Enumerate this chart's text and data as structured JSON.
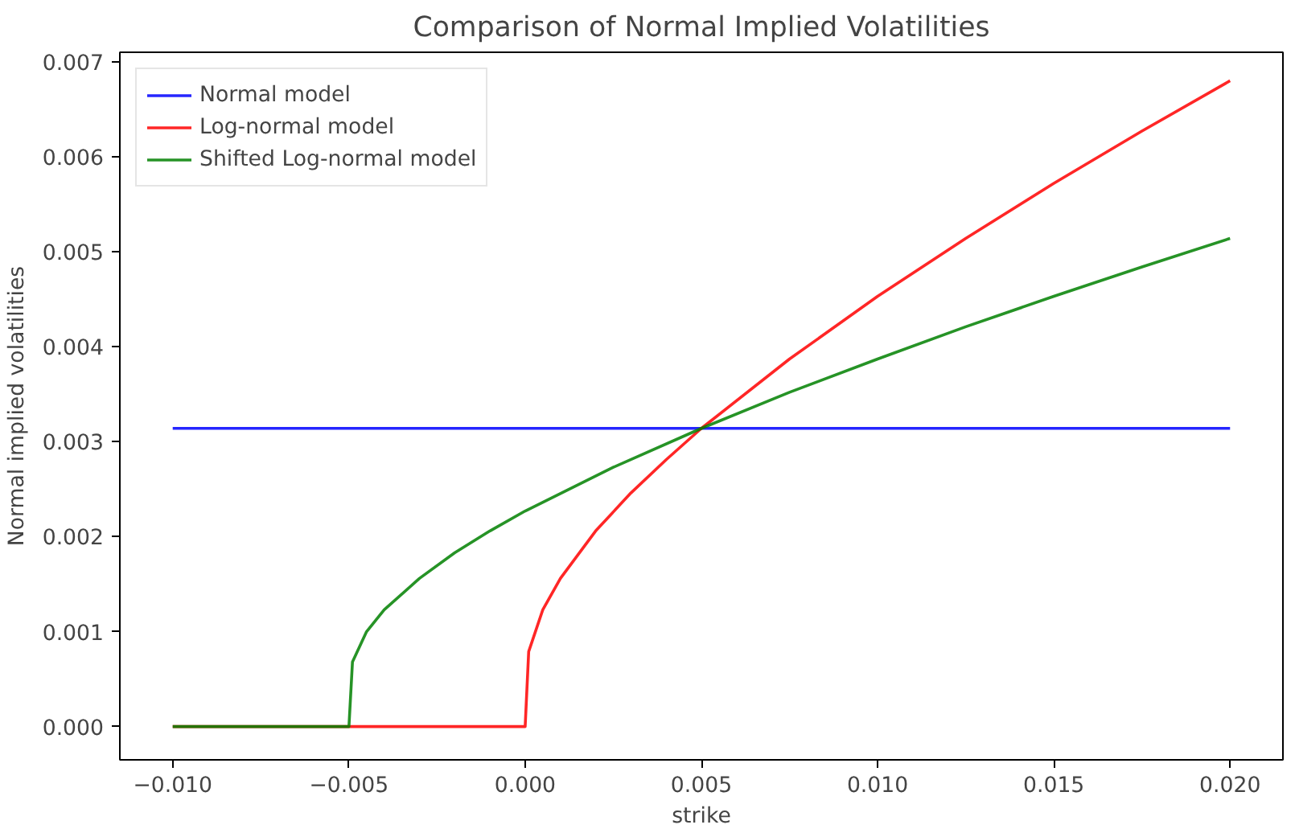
{
  "chart_data": {
    "type": "line",
    "title": "Comparison of Normal Implied Volatilities",
    "xlabel": "strike",
    "ylabel": "Normal implied volatilities",
    "xlim": [
      -0.0115,
      0.0215
    ],
    "ylim": [
      -0.00035,
      0.0071
    ],
    "xticks": [
      {
        "value": -0.01,
        "label": "−0.010"
      },
      {
        "value": -0.005,
        "label": "−0.005"
      },
      {
        "value": 0.0,
        "label": "0.000"
      },
      {
        "value": 0.005,
        "label": "0.005"
      },
      {
        "value": 0.01,
        "label": "0.010"
      },
      {
        "value": 0.015,
        "label": "0.015"
      },
      {
        "value": 0.02,
        "label": "0.020"
      }
    ],
    "yticks": [
      {
        "value": 0,
        "label": "0.000"
      },
      {
        "value": 0.001,
        "label": "0.001"
      },
      {
        "value": 0.002,
        "label": "0.002"
      },
      {
        "value": 0.003,
        "label": "0.003"
      },
      {
        "value": 0.004,
        "label": "0.004"
      },
      {
        "value": 0.005,
        "label": "0.005"
      },
      {
        "value": 0.006,
        "label": "0.006"
      },
      {
        "value": 0.007,
        "label": "0.007"
      }
    ],
    "grid": false,
    "legend": "top left",
    "line_style": "solid",
    "series": [
      {
        "name": "Normal model",
        "color": "#0000ff",
        "x": [
          -0.01,
          0.02
        ],
        "values": [
          0.00314,
          0.00314
        ]
      },
      {
        "name": "Log-normal model",
        "color": "#ff0000",
        "x": [
          -0.01,
          0.0,
          0.0001,
          0.0005,
          0.001,
          0.002,
          0.003,
          0.004,
          0.005,
          0.0075,
          0.01,
          0.0125,
          0.015,
          0.0175,
          0.02
        ],
        "values": [
          0,
          0,
          0.00079,
          0.00123,
          0.00156,
          0.00206,
          0.00246,
          0.00281,
          0.00314,
          0.00387,
          0.00453,
          0.00514,
          0.00572,
          0.00627,
          0.0068
        ]
      },
      {
        "name": "Shifted Log-normal model",
        "color": "#008000",
        "x": [
          -0.01,
          -0.005,
          -0.0049,
          -0.0045,
          -0.004,
          -0.003,
          -0.002,
          -0.001,
          0.0,
          0.0025,
          0.005,
          0.0075,
          0.01,
          0.0125,
          0.015,
          0.0175,
          0.02
        ],
        "values": [
          0,
          0,
          0.00068,
          0.001,
          0.00123,
          0.00156,
          0.00183,
          0.00206,
          0.00227,
          0.00273,
          0.00314,
          0.00352,
          0.00387,
          0.00421,
          0.00453,
          0.00484,
          0.00514
        ]
      }
    ]
  }
}
